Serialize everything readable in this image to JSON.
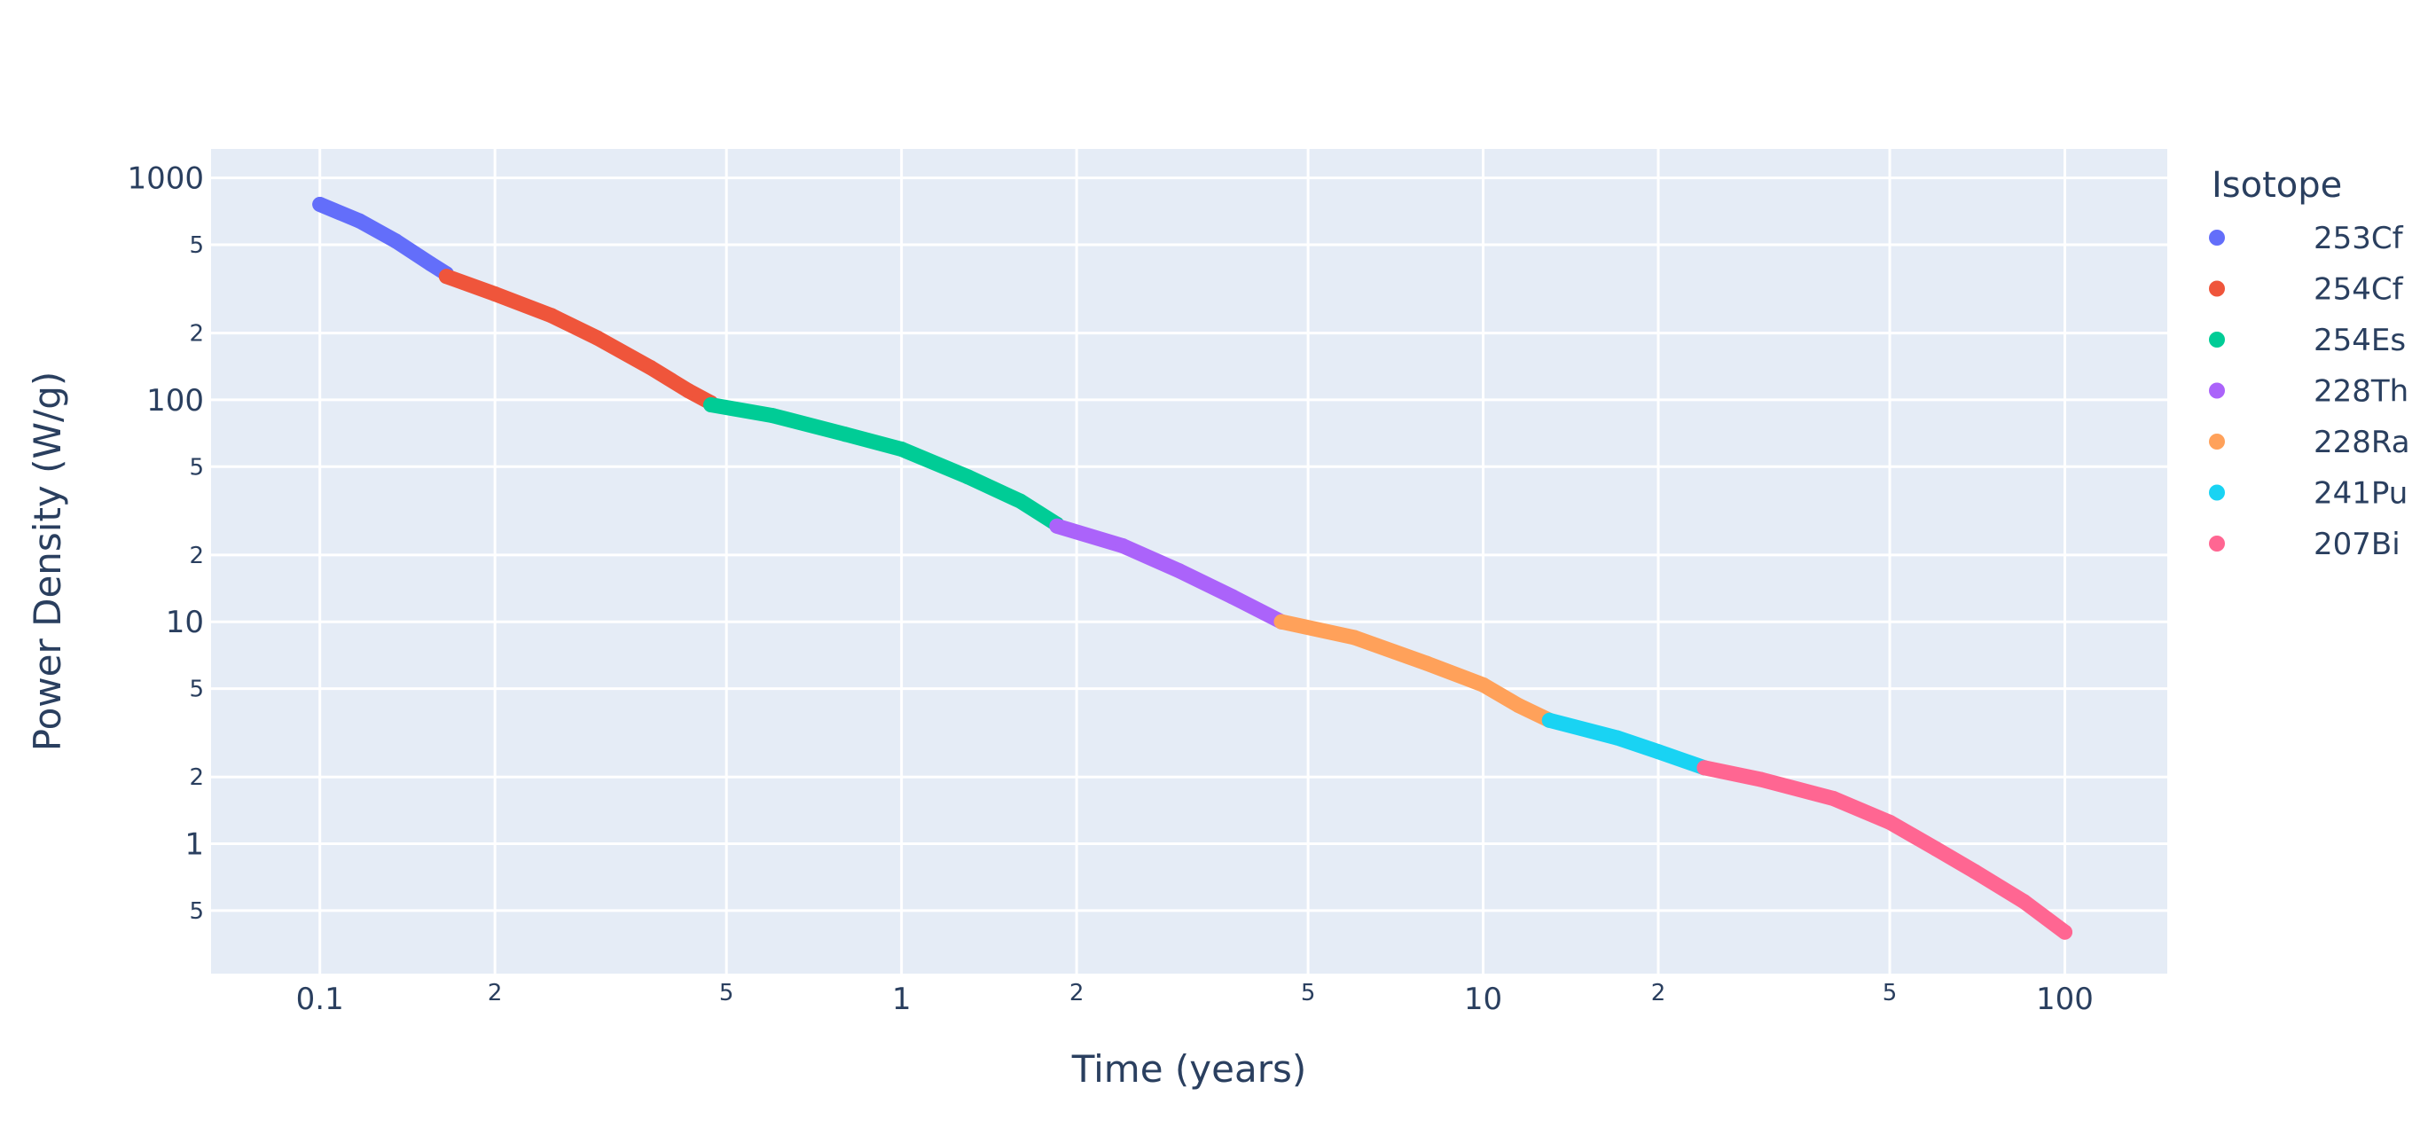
{
  "chart_data": {
    "type": "scatter",
    "xlabel": "Time (years)",
    "ylabel": "Power Density (W/g)",
    "x_scale": "log",
    "y_scale": "log",
    "xlim": [
      0.065,
      150
    ],
    "ylim": [
      0.26,
      1350
    ],
    "grid": true,
    "legend_title": "Isotope",
    "legend_position": "top-right",
    "x_major_ticks": [
      {
        "v": 0.1,
        "label": "0.1"
      },
      {
        "v": 1,
        "label": "1"
      },
      {
        "v": 10,
        "label": "10"
      },
      {
        "v": 100,
        "label": "100"
      }
    ],
    "x_minor_ticks": [
      {
        "v": 0.2,
        "label": "2"
      },
      {
        "v": 0.5,
        "label": "5"
      },
      {
        "v": 2,
        "label": "2"
      },
      {
        "v": 5,
        "label": "5"
      },
      {
        "v": 20,
        "label": "2"
      },
      {
        "v": 50,
        "label": "5"
      }
    ],
    "y_major_ticks": [
      {
        "v": 1,
        "label": "1"
      },
      {
        "v": 10,
        "label": "10"
      },
      {
        "v": 100,
        "label": "100"
      },
      {
        "v": 1000,
        "label": "1000"
      }
    ],
    "y_minor_ticks": [
      {
        "v": 0.5,
        "label": "5"
      },
      {
        "v": 2,
        "label": "2"
      },
      {
        "v": 5,
        "label": "5"
      },
      {
        "v": 20,
        "label": "2"
      },
      {
        "v": 50,
        "label": "5"
      },
      {
        "v": 200,
        "label": "2"
      },
      {
        "v": 500,
        "label": "5"
      }
    ],
    "series": [
      {
        "name": "253Cf",
        "color": "#636efa",
        "points": [
          [
            0.1,
            760
          ],
          [
            0.117,
            640
          ],
          [
            0.135,
            520
          ],
          [
            0.155,
            410
          ],
          [
            0.165,
            370
          ]
        ]
      },
      {
        "name": "254Cf",
        "color": "#EF553B",
        "points": [
          [
            0.165,
            360
          ],
          [
            0.2,
            300
          ],
          [
            0.25,
            240
          ],
          [
            0.3,
            190
          ],
          [
            0.37,
            140
          ],
          [
            0.43,
            110
          ],
          [
            0.47,
            97
          ]
        ]
      },
      {
        "name": "254Es",
        "color": "#00cc96",
        "points": [
          [
            0.47,
            95
          ],
          [
            0.6,
            85
          ],
          [
            0.8,
            70
          ],
          [
            1.0,
            60
          ],
          [
            1.3,
            45
          ],
          [
            1.6,
            35
          ],
          [
            1.85,
            27.5
          ]
        ]
      },
      {
        "name": "228Th",
        "color": "#ab63fa",
        "points": [
          [
            1.85,
            27
          ],
          [
            2.4,
            22
          ],
          [
            3.0,
            17
          ],
          [
            3.7,
            13
          ],
          [
            4.5,
            10
          ]
        ]
      },
      {
        "name": "228Ra",
        "color": "#FFA15A",
        "points": [
          [
            4.5,
            10
          ],
          [
            6.0,
            8.5
          ],
          [
            8.0,
            6.5
          ],
          [
            10.0,
            5.2
          ],
          [
            11.5,
            4.2
          ],
          [
            13.0,
            3.6
          ]
        ]
      },
      {
        "name": "241Pu",
        "color": "#19d3f3",
        "points": [
          [
            13.0,
            3.6
          ],
          [
            17.0,
            3.0
          ],
          [
            20.0,
            2.6
          ],
          [
            24.0,
            2.2
          ]
        ]
      },
      {
        "name": "207Bi",
        "color": "#FF6692",
        "points": [
          [
            24.0,
            2.2
          ],
          [
            30.0,
            1.95
          ],
          [
            40.0,
            1.6
          ],
          [
            50.0,
            1.25
          ],
          [
            60.0,
            0.95
          ],
          [
            70.0,
            0.75
          ],
          [
            85.0,
            0.55
          ],
          [
            100.0,
            0.4
          ]
        ]
      }
    ]
  }
}
